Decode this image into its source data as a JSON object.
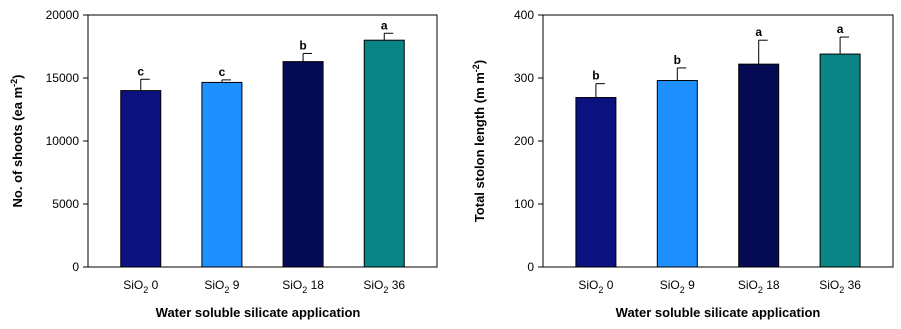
{
  "chart_data": [
    {
      "type": "bar",
      "categories": [
        {
          "base": "SiO",
          "sub": "2",
          "suffix": " 0"
        },
        {
          "base": "SiO",
          "sub": "2",
          "suffix": " 9"
        },
        {
          "base": "SiO",
          "sub": "2",
          "suffix": " 18"
        },
        {
          "base": "SiO",
          "sub": "2",
          "suffix": " 36"
        }
      ],
      "values": [
        14000,
        14650,
        16300,
        18000
      ],
      "errors": [
        900,
        200,
        650,
        550
      ],
      "significance": [
        "c",
        "c",
        "b",
        "a"
      ],
      "bar_colors": [
        "#0b1280",
        "#1e90ff",
        "#050a55",
        "#0a8585"
      ],
      "ylim": [
        0,
        20000
      ],
      "yticks": [
        "0",
        "5000",
        "10000",
        "15000",
        "20000"
      ],
      "ylabel": {
        "text": "No. of shoots (ea m",
        "sup": "-2",
        "tail": ")"
      },
      "xlabel": "Water soluble silicate application",
      "grid": false
    },
    {
      "type": "bar",
      "categories": [
        {
          "base": "SiO",
          "sub": "2",
          "suffix": " 0"
        },
        {
          "base": "SiO",
          "sub": "2",
          "suffix": " 9"
        },
        {
          "base": "SiO",
          "sub": "2",
          "suffix": " 18"
        },
        {
          "base": "SiO",
          "sub": "2",
          "suffix": " 36"
        }
      ],
      "values": [
        269,
        296,
        322,
        338
      ],
      "errors": [
        22,
        20,
        38,
        27
      ],
      "significance": [
        "b",
        "b",
        "a",
        "a"
      ],
      "bar_colors": [
        "#0b1280",
        "#1e90ff",
        "#050a55",
        "#0a8585"
      ],
      "ylim": [
        0,
        400
      ],
      "yticks": [
        "0",
        "100",
        "200",
        "300",
        "400"
      ],
      "ylabel": {
        "text": "Total stolon length (m m",
        "sup": "-2",
        "tail": ")"
      },
      "xlabel": "Water soluble silicate application",
      "grid": false
    }
  ]
}
